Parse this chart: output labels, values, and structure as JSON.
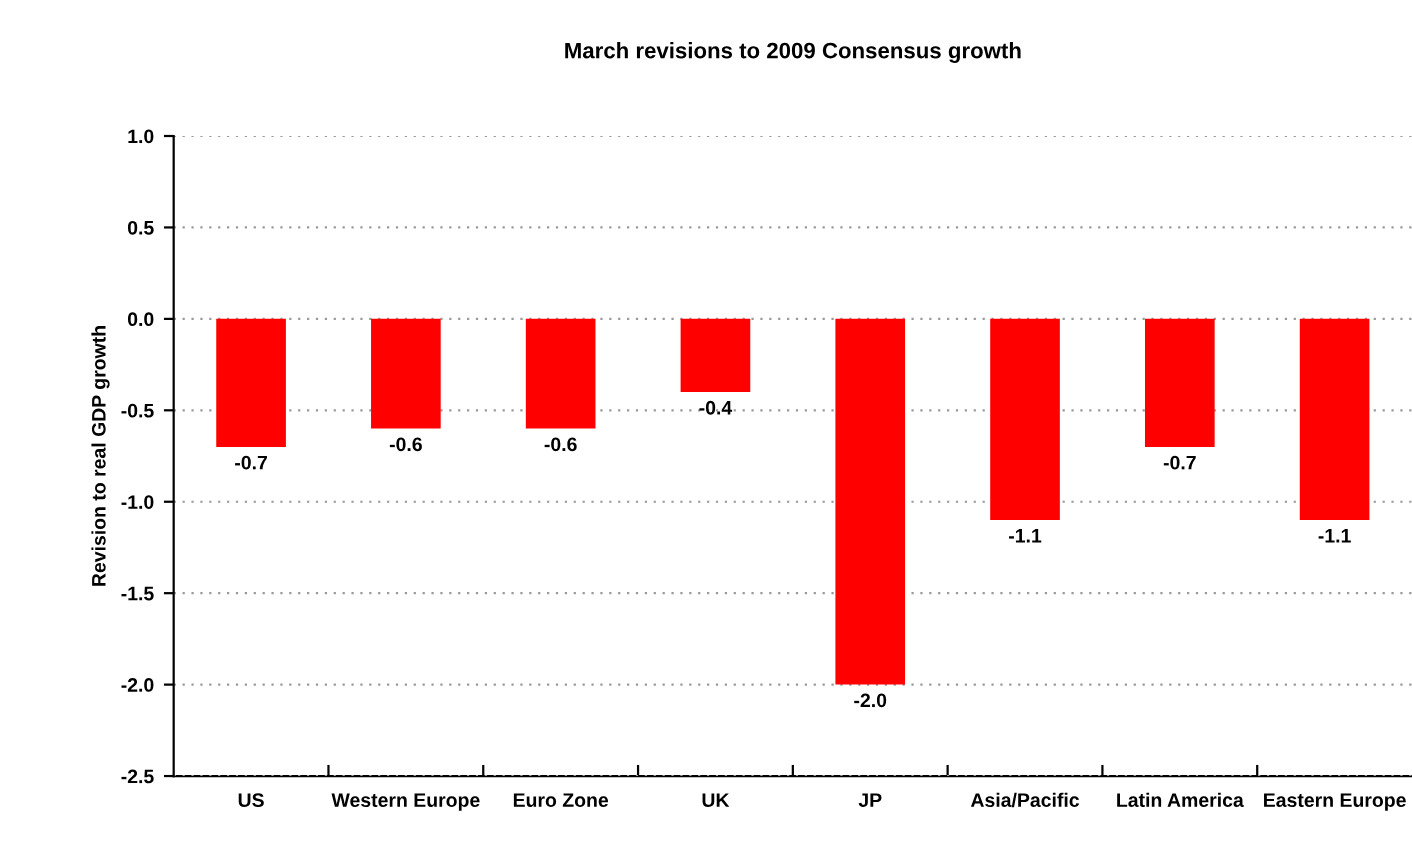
{
  "chart_data": {
    "type": "bar",
    "title": "March revisions to 2009 Consensus growth",
    "ylabel": "Revision to real GDP growth",
    "categories": [
      "US",
      "Western Europe",
      "Euro Zone",
      "UK",
      "JP",
      "Asia/Pacific",
      "Latin America",
      "Eastern Europe"
    ],
    "values": [
      -0.7,
      -0.6,
      -0.6,
      -0.4,
      -2.0,
      -1.1,
      -0.7,
      -1.1
    ],
    "color": "#ff0000",
    "value_labels": [
      "-0.7",
      "-0.6",
      "-0.6",
      "-0.4",
      "-2.0",
      "-1.1",
      "-0.7",
      "-1.1"
    ],
    "ylim": [
      -2.5,
      1.0
    ],
    "yticks": [
      {
        "value": -2.5,
        "label": "-2.5"
      },
      {
        "value": -2.0,
        "label": "-2.0"
      },
      {
        "value": -1.5,
        "label": "-1.5"
      },
      {
        "value": -1.0,
        "label": "-1.0"
      },
      {
        "value": -0.5,
        "label": "-0.5"
      },
      {
        "value": 0.0,
        "label": "0.0"
      },
      {
        "value": 0.5,
        "label": "0.5"
      },
      {
        "value": 1.0,
        "label": "1.0"
      }
    ],
    "grid": "y",
    "legend": false
  }
}
